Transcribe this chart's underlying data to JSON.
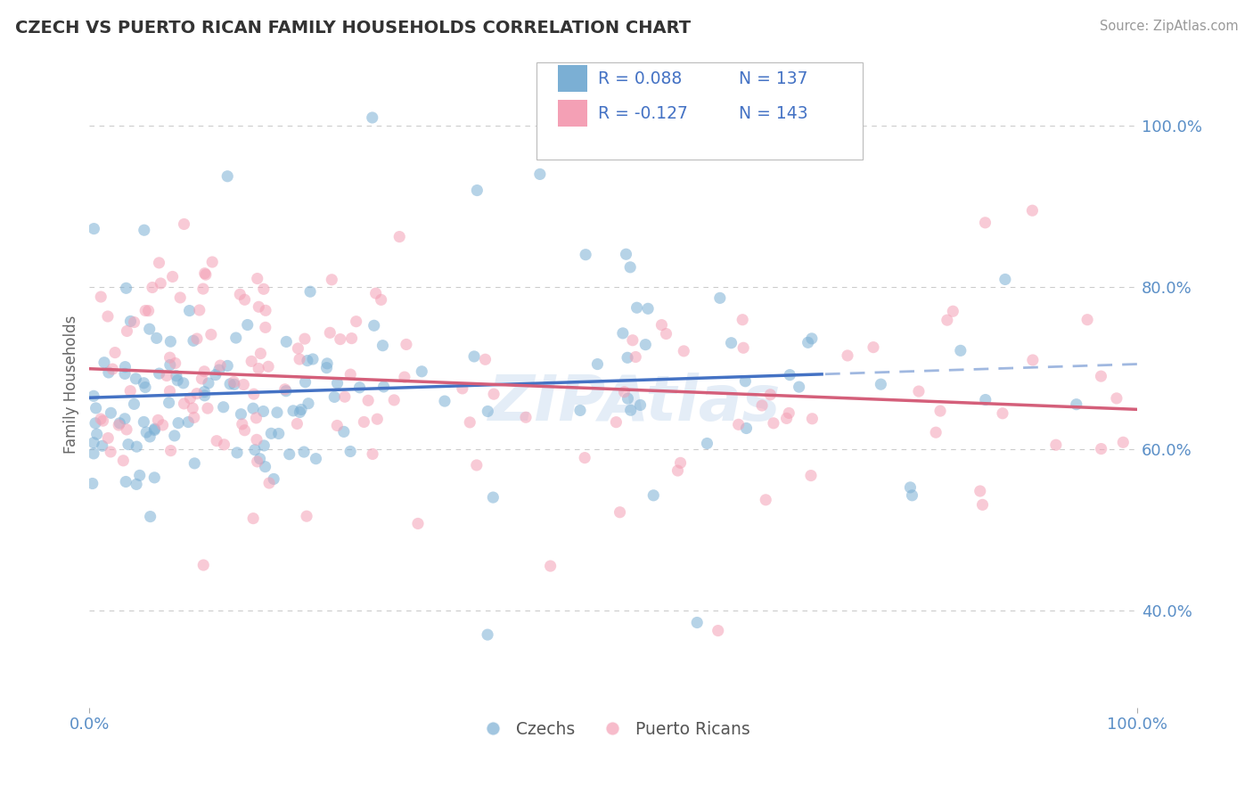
{
  "title": "CZECH VS PUERTO RICAN FAMILY HOUSEHOLDS CORRELATION CHART",
  "source": "Source: ZipAtlas.com",
  "ylabel": "Family Households",
  "xlim": [
    0.0,
    1.0
  ],
  "ylim_min": 0.28,
  "ylim_max": 1.08,
  "czech_R": 0.088,
  "czech_N": 137,
  "puerto_rican_R": -0.127,
  "puerto_rican_N": 143,
  "czech_color": "#7bafd4",
  "puerto_rican_color": "#f4a0b5",
  "czech_line_color": "#4472c4",
  "puerto_rican_line_color": "#d45f7a",
  "czech_line_dash_color": "#a0b8e0",
  "background_color": "#ffffff",
  "grid_color": "#cccccc",
  "title_color": "#333333",
  "axis_color": "#5b8fc7",
  "legend_R_color": "#4472c4",
  "legend_N_color": "#4472c4",
  "legend_R2_color": "#4472c4",
  "legend_N2_color": "#4472c4",
  "watermark_color": "#c5d8ee",
  "ytick_positions": [
    0.4,
    0.6,
    0.8,
    1.0
  ],
  "ytick_labels": [
    "40.0%",
    "60.0%",
    "80.0%",
    "100.0%"
  ]
}
